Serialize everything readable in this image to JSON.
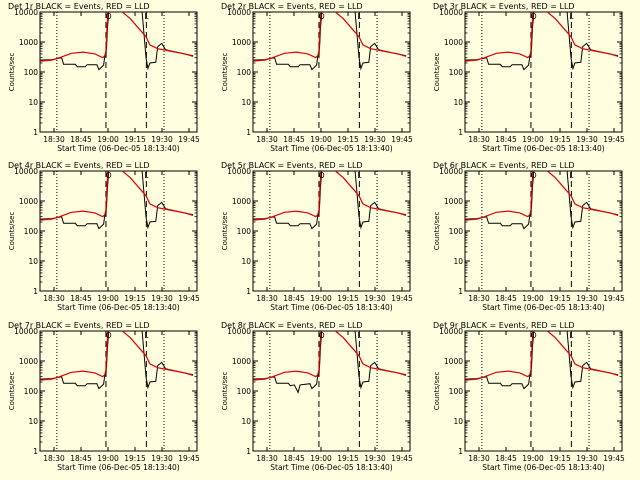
{
  "figure": {
    "background": "#ffffe0",
    "event_color": "#000000",
    "lld_color": "#e00000",
    "marker_1": "O",
    "marker_2": "L"
  },
  "chart_data": [
    {
      "type": "line",
      "title": "Det 1r BLACK = Events, RED = LLD",
      "xlabel": "Start Time (06-Dec-05 18:13:40)",
      "ylabel": "Counts/sec",
      "y_scale": "log",
      "ylim": [
        1,
        10000
      ],
      "xlim": [
        18.45,
        18.85
      ],
      "x_ticks": [
        "18:30",
        "18:45",
        "19:00",
        "19:15",
        "19:30",
        "19:45"
      ],
      "y_ticks": [
        "1",
        "10",
        "100",
        "1000",
        "10000"
      ],
      "series": [
        {
          "name": "Events"
        },
        {
          "name": "LLD"
        }
      ],
      "vlines": [
        {
          "x": 18.493,
          "style": "dotted"
        },
        {
          "x": 18.618,
          "style": "dashed"
        },
        {
          "x": 18.721,
          "style": "dashed"
        },
        {
          "x": 18.766,
          "style": "dotted"
        }
      ]
    },
    {
      "type": "line",
      "title": "Det 2r BLACK = Events, RED = LLD",
      "xlabel": "Start Time (06-Dec-05 18:13:40)",
      "ylabel": "Counts/sec",
      "y_scale": "log",
      "ylim": [
        1,
        10000
      ],
      "xlim": [
        18.45,
        18.85
      ],
      "x_ticks": [
        "18:30",
        "18:45",
        "19:00",
        "19:15",
        "19:30",
        "19:45"
      ],
      "y_ticks": [
        "1",
        "10",
        "100",
        "1000",
        "10000"
      ],
      "series": [
        {
          "name": "Events"
        },
        {
          "name": "LLD"
        }
      ],
      "vlines": [
        {
          "x": 18.493,
          "style": "dotted"
        },
        {
          "x": 18.618,
          "style": "dashed"
        },
        {
          "x": 18.721,
          "style": "dashed"
        },
        {
          "x": 18.766,
          "style": "dotted"
        }
      ]
    },
    {
      "type": "line",
      "title": "Det 3r BLACK = Events, RED = LLD",
      "xlabel": "Start Time (06-Dec-05 18:13:40)",
      "ylabel": "Counts/sec",
      "y_scale": "log",
      "ylim": [
        1,
        10000
      ],
      "xlim": [
        18.45,
        18.85
      ],
      "x_ticks": [
        "18:30",
        "18:45",
        "19:00",
        "19:15",
        "19:30",
        "19:45"
      ],
      "y_ticks": [
        "1",
        "10",
        "100",
        "1000",
        "10000"
      ],
      "series": [
        {
          "name": "Events"
        },
        {
          "name": "LLD"
        }
      ],
      "vlines": [
        {
          "x": 18.493,
          "style": "dotted"
        },
        {
          "x": 18.618,
          "style": "dashed"
        },
        {
          "x": 18.721,
          "style": "dashed"
        },
        {
          "x": 18.766,
          "style": "dotted"
        }
      ]
    },
    {
      "type": "line",
      "title": "Det 4r BLACK = Events, RED = LLD",
      "xlabel": "Start Time (06-Dec-05 18:13:40)",
      "ylabel": "Counts/sec",
      "y_scale": "log",
      "ylim": [
        1,
        10000
      ],
      "xlim": [
        18.45,
        18.85
      ],
      "x_ticks": [
        "18:30",
        "18:45",
        "19:00",
        "19:15",
        "19:30",
        "19:45"
      ],
      "y_ticks": [
        "1",
        "10",
        "100",
        "1000",
        "10000"
      ],
      "series": [
        {
          "name": "Events"
        },
        {
          "name": "LLD"
        }
      ],
      "vlines": [
        {
          "x": 18.493,
          "style": "dotted"
        },
        {
          "x": 18.618,
          "style": "dashed"
        },
        {
          "x": 18.721,
          "style": "dashed"
        },
        {
          "x": 18.766,
          "style": "dotted"
        }
      ]
    },
    {
      "type": "line",
      "title": "Det 5r BLACK = Events, RED = LLD",
      "xlabel": "Start Time (06-Dec-05 18:13:40)",
      "ylabel": "Counts/sec",
      "y_scale": "log",
      "ylim": [
        1,
        10000
      ],
      "xlim": [
        18.45,
        18.85
      ],
      "x_ticks": [
        "18:30",
        "18:45",
        "19:00",
        "19:15",
        "19:30",
        "19:45"
      ],
      "y_ticks": [
        "1",
        "10",
        "100",
        "1000",
        "10000"
      ],
      "series": [
        {
          "name": "Events"
        },
        {
          "name": "LLD"
        }
      ],
      "vlines": [
        {
          "x": 18.493,
          "style": "dotted"
        },
        {
          "x": 18.618,
          "style": "dashed"
        },
        {
          "x": 18.721,
          "style": "dashed"
        },
        {
          "x": 18.766,
          "style": "dotted"
        }
      ]
    },
    {
      "type": "line",
      "title": "Det 6r BLACK = Events, RED = LLD",
      "xlabel": "Start Time (06-Dec-05 18:13:40)",
      "ylabel": "Counts/sec",
      "y_scale": "log",
      "ylim": [
        1,
        10000
      ],
      "xlim": [
        18.45,
        18.85
      ],
      "x_ticks": [
        "18:30",
        "18:45",
        "19:00",
        "19:15",
        "19:30",
        "19:45"
      ],
      "y_ticks": [
        "1",
        "10",
        "100",
        "1000",
        "10000"
      ],
      "series": [
        {
          "name": "Events"
        },
        {
          "name": "LLD"
        }
      ],
      "vlines": [
        {
          "x": 18.493,
          "style": "dotted"
        },
        {
          "x": 18.618,
          "style": "dashed"
        },
        {
          "x": 18.721,
          "style": "dashed"
        },
        {
          "x": 18.766,
          "style": "dotted"
        }
      ]
    },
    {
      "type": "line",
      "title": "Det 7r BLACK = Events, RED = LLD",
      "xlabel": "Start Time (06-Dec-05 18:13:40)",
      "ylabel": "Counts/sec",
      "y_scale": "log",
      "ylim": [
        1,
        10000
      ],
      "xlim": [
        18.45,
        18.85
      ],
      "x_ticks": [
        "18:30",
        "18:45",
        "19:00",
        "19:15",
        "19:30",
        "19:45"
      ],
      "y_ticks": [
        "1",
        "10",
        "100",
        "1000",
        "10000"
      ],
      "series": [
        {
          "name": "Events"
        },
        {
          "name": "LLD"
        }
      ],
      "vlines": [
        {
          "x": 18.493,
          "style": "dotted"
        },
        {
          "x": 18.618,
          "style": "dashed"
        },
        {
          "x": 18.721,
          "style": "dashed"
        },
        {
          "x": 18.766,
          "style": "dotted"
        }
      ]
    },
    {
      "type": "line",
      "title": "Det 8r BLACK = Events, RED = LLD",
      "xlabel": "Start Time (06-Dec-05 18:13:40)",
      "ylabel": "Counts/sec",
      "y_scale": "log",
      "ylim": [
        1,
        10000
      ],
      "xlim": [
        18.45,
        18.85
      ],
      "x_ticks": [
        "18:30",
        "18:45",
        "19:00",
        "19:15",
        "19:30",
        "19:45"
      ],
      "y_ticks": [
        "1",
        "10",
        "100",
        "1000",
        "10000"
      ],
      "series": [
        {
          "name": "Events"
        },
        {
          "name": "LLD"
        }
      ],
      "vlines": [
        {
          "x": 18.493,
          "style": "dotted"
        },
        {
          "x": 18.618,
          "style": "dashed"
        },
        {
          "x": 18.721,
          "style": "dashed"
        },
        {
          "x": 18.766,
          "style": "dotted"
        }
      ]
    },
    {
      "type": "line",
      "title": "Det 9r BLACK = Events, RED = LLD",
      "xlabel": "Start Time (06-Dec-05 18:13:40)",
      "ylabel": "Counts/sec",
      "y_scale": "log",
      "ylim": [
        1,
        10000
      ],
      "xlim": [
        18.45,
        18.85
      ],
      "x_ticks": [
        "18:30",
        "18:45",
        "19:00",
        "19:15",
        "19:30",
        "19:45"
      ],
      "y_ticks": [
        "1",
        "10",
        "100",
        "1000",
        "10000"
      ],
      "series": [
        {
          "name": "Events"
        },
        {
          "name": "LLD"
        }
      ],
      "vlines": [
        {
          "x": 18.493,
          "style": "dotted"
        },
        {
          "x": 18.618,
          "style": "dashed"
        },
        {
          "x": 18.721,
          "style": "dashed"
        },
        {
          "x": 18.766,
          "style": "dotted"
        }
      ]
    }
  ],
  "series_data": {
    "events": [
      [
        18.45,
        250
      ],
      [
        18.48,
        260
      ],
      [
        18.505,
        300
      ],
      [
        18.51,
        180
      ],
      [
        18.54,
        180
      ],
      [
        18.545,
        150
      ],
      [
        18.565,
        150
      ],
      [
        18.57,
        175
      ],
      [
        18.595,
        175
      ],
      [
        18.6,
        120
      ],
      [
        18.612,
        170
      ],
      [
        18.615,
        330
      ],
      [
        18.618,
        330
      ],
      [
        18.62,
        800
      ],
      [
        18.622,
        3000
      ],
      [
        18.625,
        9000
      ],
      [
        18.625,
        10000
      ]
    ],
    "events_tail": [
      [
        18.71,
        10000
      ],
      [
        18.72,
        300
      ],
      [
        18.725,
        130
      ],
      [
        18.73,
        200
      ],
      [
        18.745,
        210
      ],
      [
        18.75,
        700
      ],
      [
        18.76,
        900
      ],
      [
        18.77,
        550
      ],
      [
        18.8,
        450
      ],
      [
        18.84,
        350
      ]
    ],
    "lld": [
      [
        18.45,
        230
      ],
      [
        18.48,
        250
      ],
      [
        18.5,
        300
      ],
      [
        18.53,
        420
      ],
      [
        18.56,
        460
      ],
      [
        18.59,
        400
      ],
      [
        18.61,
        300
      ],
      [
        18.615,
        350
      ],
      [
        18.618,
        500
      ],
      [
        18.62,
        2000
      ],
      [
        18.623,
        10000
      ]
    ],
    "lld_tail": [
      [
        18.66,
        10000
      ],
      [
        18.68,
        6000
      ],
      [
        18.7,
        3000
      ],
      [
        18.72,
        1500
      ],
      [
        18.73,
        800
      ],
      [
        18.75,
        600
      ],
      [
        18.78,
        500
      ],
      [
        18.82,
        400
      ],
      [
        18.84,
        330
      ]
    ],
    "events_8_dip": [
      [
        18.555,
        160
      ],
      [
        18.56,
        120
      ],
      [
        18.565,
        90
      ],
      [
        18.57,
        160
      ]
    ]
  }
}
